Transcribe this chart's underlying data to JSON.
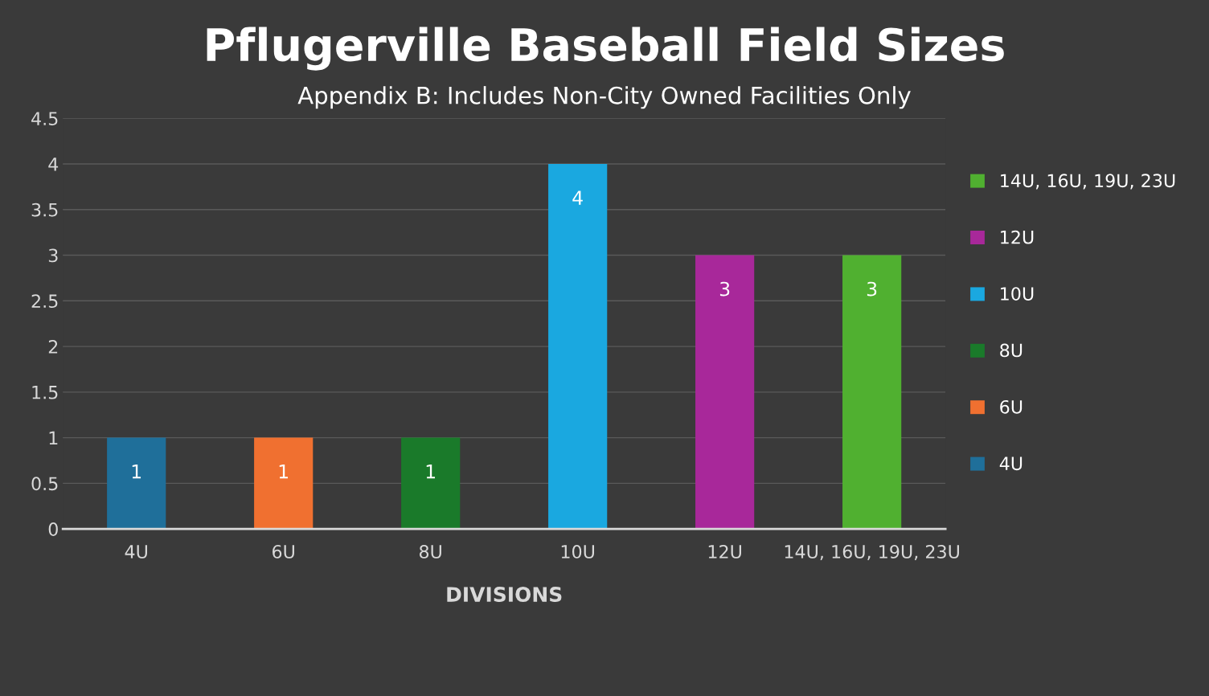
{
  "chart_data": {
    "type": "bar",
    "title": "Pflugerville Baseball Field Sizes",
    "subtitle": "Appendix B: Includes Non-City Owned Facilities Only",
    "xlabel": "DIVISIONS",
    "categories": [
      "4U",
      "6U",
      "8U",
      "10U",
      "12U",
      "14U, 16U, 19U, 23U"
    ],
    "series": [
      {
        "name": "4U",
        "color": "#1f6f9a",
        "values": [
          1,
          null,
          null,
          null,
          null,
          null
        ]
      },
      {
        "name": "6U",
        "color": "#f07030",
        "values": [
          null,
          1,
          null,
          null,
          null,
          null
        ]
      },
      {
        "name": "8U",
        "color": "#1a7a2a",
        "values": [
          null,
          null,
          1,
          null,
          null,
          null
        ]
      },
      {
        "name": "10U",
        "color": "#1aa8e0",
        "values": [
          null,
          null,
          null,
          4,
          null,
          null
        ]
      },
      {
        "name": "12U",
        "color": "#a8289a",
        "values": [
          null,
          null,
          null,
          null,
          3,
          null
        ]
      },
      {
        "name": "14U, 16U, 19U, 23U",
        "color": "#50b030",
        "values": [
          null,
          null,
          null,
          null,
          null,
          3
        ]
      }
    ],
    "ylim": [
      0,
      4.5
    ],
    "yticks": [
      0,
      0.5,
      1,
      1.5,
      2,
      2.5,
      3,
      3.5,
      4,
      4.5
    ],
    "grid": "y",
    "legend": "right",
    "data_labels": true
  }
}
